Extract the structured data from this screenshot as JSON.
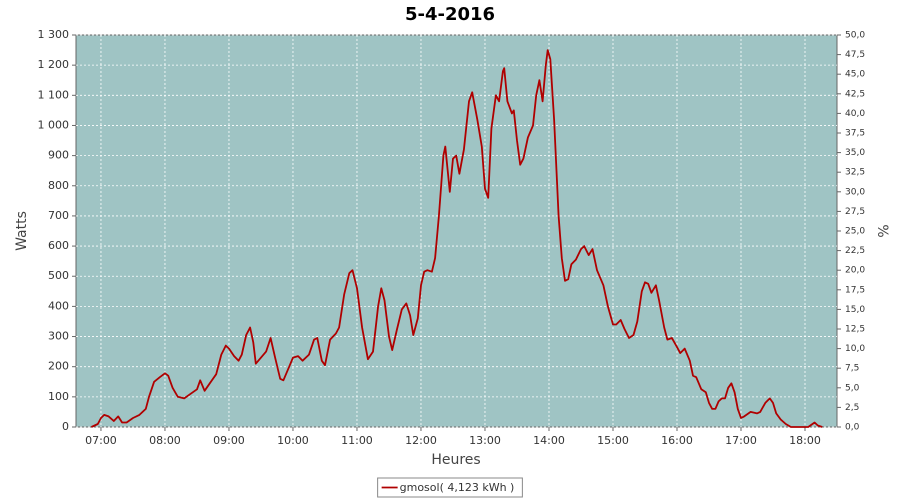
{
  "chart_data": {
    "type": "line",
    "title": "5-4-2016",
    "x_label": "Heures",
    "y_label": "Watts",
    "y2_label": "%",
    "xlim": [
      6.61,
      18.5
    ],
    "xticks": [
      {
        "value": 7,
        "label": "07:00"
      },
      {
        "value": 8,
        "label": "08:00"
      },
      {
        "value": 9,
        "label": "09:00"
      },
      {
        "value": 10,
        "label": "10:00"
      },
      {
        "value": 11,
        "label": "11:00"
      },
      {
        "value": 12,
        "label": "12:00"
      },
      {
        "value": 13,
        "label": "13:00"
      },
      {
        "value": 14,
        "label": "14:00"
      },
      {
        "value": 15,
        "label": "15:00"
      },
      {
        "value": 16,
        "label": "16:00"
      },
      {
        "value": 17,
        "label": "17:00"
      },
      {
        "value": 18,
        "label": "18:00"
      }
    ],
    "ylim": [
      0,
      1300
    ],
    "yticks": [
      0,
      100,
      200,
      300,
      400,
      500,
      600,
      700,
      800,
      900,
      {
        "value": 1000,
        "label": "1 000"
      },
      {
        "value": 1100,
        "label": "1 100"
      },
      {
        "value": 1200,
        "label": "1 200"
      },
      {
        "value": 1300,
        "label": "1 300"
      }
    ],
    "y2lim": [
      0,
      50
    ],
    "y2ticks": [
      {
        "value": 0,
        "label": "0,0"
      },
      {
        "value": 2.5,
        "label": "2,5"
      },
      {
        "value": 5,
        "label": "5,0"
      },
      {
        "value": 7.5,
        "label": "7,5"
      },
      {
        "value": 10,
        "label": "10,0"
      },
      {
        "value": 12.5,
        "label": "12,5"
      },
      {
        "value": 15,
        "label": "15,0"
      },
      {
        "value": 17.5,
        "label": "17,5"
      },
      {
        "value": 20,
        "label": "20,0"
      },
      {
        "value": 22.5,
        "label": "22,5"
      },
      {
        "value": 25,
        "label": "25,0"
      },
      {
        "value": 27.5,
        "label": "27,5"
      },
      {
        "value": 30,
        "label": "30,0"
      },
      {
        "value": 32.5,
        "label": "32,5"
      },
      {
        "value": 35,
        "label": "35,0"
      },
      {
        "value": 37.5,
        "label": "37,5"
      },
      {
        "value": 40,
        "label": "40,0"
      },
      {
        "value": 42.5,
        "label": "42,5"
      },
      {
        "value": 45,
        "label": "45,0"
      },
      {
        "value": 47.5,
        "label": "47,5"
      },
      {
        "value": 50,
        "label": "50,0"
      }
    ],
    "grid": true,
    "legend": "bottom",
    "x": [
      6.85,
      6.95,
      7.0,
      7.05,
      7.12,
      7.2,
      7.27,
      7.33,
      7.4,
      7.5,
      7.6,
      7.7,
      7.75,
      7.83,
      7.92,
      8.0,
      8.05,
      8.12,
      8.2,
      8.3,
      8.4,
      8.5,
      8.55,
      8.62,
      8.7,
      8.8,
      8.88,
      8.95,
      9.0,
      9.08,
      9.15,
      9.2,
      9.27,
      9.33,
      9.38,
      9.42,
      9.5,
      9.58,
      9.65,
      9.72,
      9.8,
      9.85,
      9.92,
      10.0,
      10.08,
      10.15,
      10.25,
      10.33,
      10.38,
      10.45,
      10.5,
      10.58,
      10.67,
      10.72,
      10.8,
      10.88,
      10.93,
      11.0,
      11.08,
      11.17,
      11.25,
      11.33,
      11.38,
      11.43,
      11.5,
      11.55,
      11.62,
      11.7,
      11.77,
      11.83,
      11.88,
      11.95,
      12.0,
      12.05,
      12.1,
      12.17,
      12.22,
      12.28,
      12.35,
      12.38,
      12.45,
      12.5,
      12.55,
      12.6,
      12.67,
      12.75,
      12.8,
      12.88,
      12.95,
      13.0,
      13.05,
      13.1,
      13.17,
      13.22,
      13.28,
      13.3,
      13.35,
      13.42,
      13.45,
      13.5,
      13.55,
      13.6,
      13.67,
      13.75,
      13.8,
      13.85,
      13.9,
      13.95,
      13.98,
      14.02,
      14.08,
      14.15,
      14.2,
      14.25,
      14.3,
      14.35,
      14.42,
      14.5,
      14.55,
      14.62,
      14.68,
      14.75,
      14.85,
      14.92,
      15.0,
      15.05,
      15.12,
      15.18,
      15.25,
      15.32,
      15.38,
      15.45,
      15.5,
      15.55,
      15.6,
      15.67,
      15.72,
      15.8,
      15.85,
      15.92,
      16.0,
      16.05,
      16.12,
      16.2,
      16.25,
      16.3,
      16.38,
      16.45,
      16.5,
      16.55,
      16.6,
      16.65,
      16.7,
      16.75,
      16.8,
      16.85,
      16.9,
      16.95,
      17.0,
      17.05,
      17.15,
      17.25,
      17.3,
      17.38,
      17.45,
      17.5,
      17.55,
      17.62,
      17.7,
      17.78,
      17.9,
      18.05,
      18.15,
      18.2,
      18.27
    ],
    "series": [
      {
        "name": "gmosol( 4,123 kWh )",
        "color": "#b00000",
        "values": [
          0,
          10,
          30,
          40,
          35,
          20,
          35,
          15,
          15,
          30,
          40,
          60,
          100,
          150,
          165,
          178,
          170,
          130,
          100,
          95,
          110,
          125,
          155,
          120,
          145,
          175,
          240,
          270,
          260,
          235,
          220,
          240,
          305,
          330,
          280,
          210,
          230,
          250,
          295,
          230,
          160,
          155,
          190,
          230,
          235,
          220,
          240,
          290,
          295,
          220,
          205,
          290,
          310,
          330,
          440,
          510,
          520,
          460,
          330,
          225,
          250,
          400,
          460,
          420,
          300,
          255,
          320,
          390,
          410,
          370,
          305,
          360,
          470,
          515,
          520,
          515,
          560,
          700,
          900,
          930,
          780,
          890,
          900,
          840,
          920,
          1080,
          1110,
          1020,
          930,
          790,
          760,
          990,
          1100,
          1080,
          1180,
          1190,
          1080,
          1040,
          1050,
          950,
          870,
          890,
          960,
          1000,
          1100,
          1150,
          1080,
          1200,
          1250,
          1220,
          1020,
          700,
          560,
          485,
          490,
          540,
          555,
          590,
          600,
          570,
          590,
          520,
          470,
          400,
          340,
          340,
          355,
          325,
          295,
          305,
          350,
          450,
          480,
          475,
          445,
          470,
          420,
          330,
          290,
          295,
          265,
          245,
          260,
          220,
          170,
          165,
          125,
          115,
          80,
          60,
          60,
          85,
          95,
          95,
          130,
          145,
          115,
          60,
          30,
          35,
          50,
          45,
          50,
          80,
          95,
          80,
          45,
          25,
          10,
          0,
          0,
          0,
          15,
          5,
          0
        ]
      }
    ]
  }
}
